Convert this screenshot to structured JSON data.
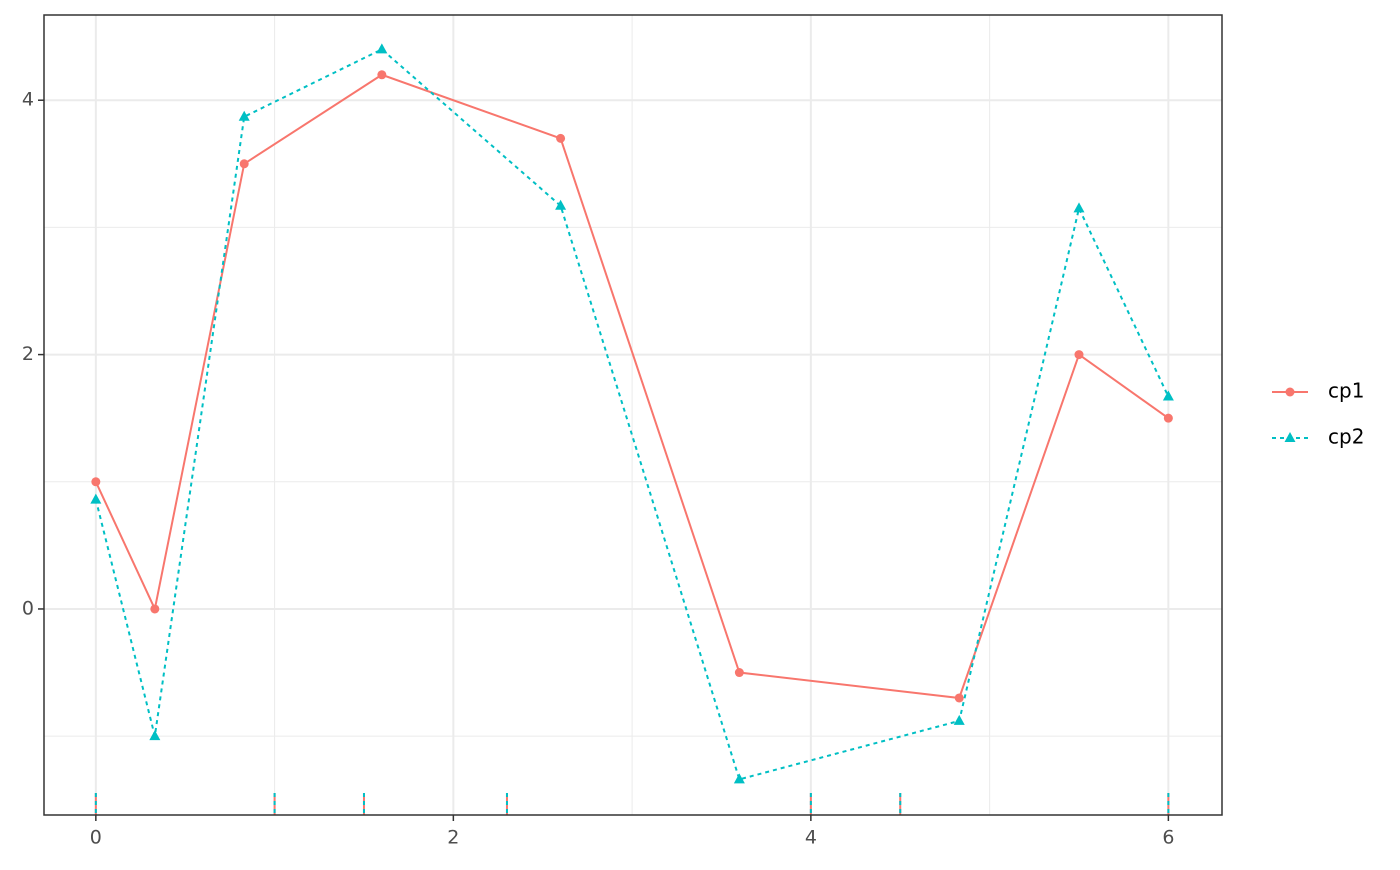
{
  "chart_data": {
    "type": "line",
    "x": [
      0,
      0.33,
      0.83,
      1.6,
      2.6,
      3.6,
      4.83,
      5.5,
      6
    ],
    "series": [
      {
        "name": "cp1",
        "color": "#F8766D",
        "dash": "solid",
        "marker": "circle",
        "values": [
          1,
          0,
          3.5,
          4.2,
          3.7,
          -0.5,
          -0.7,
          2,
          1.5
        ]
      },
      {
        "name": "cp2",
        "color": "#00BFC4",
        "dash": "dotted",
        "marker": "triangle",
        "values": [
          0.86,
          -1.0,
          3.87,
          4.4,
          3.17,
          -1.34,
          -0.88,
          3.15,
          1.67
        ]
      }
    ],
    "rug": [
      0,
      1,
      1.5,
      2.3,
      4,
      4.5,
      6
    ],
    "xlim": [
      -0.29,
      6.3
    ],
    "ylim": [
      -1.62,
      4.67
    ],
    "xticks": [
      0,
      2,
      4,
      6
    ],
    "yticks": [
      0,
      2,
      4
    ],
    "x_minor_grid": [
      1,
      3,
      5
    ],
    "y_minor_grid": [
      -1,
      1,
      3
    ],
    "grid": true,
    "legend": "right"
  }
}
